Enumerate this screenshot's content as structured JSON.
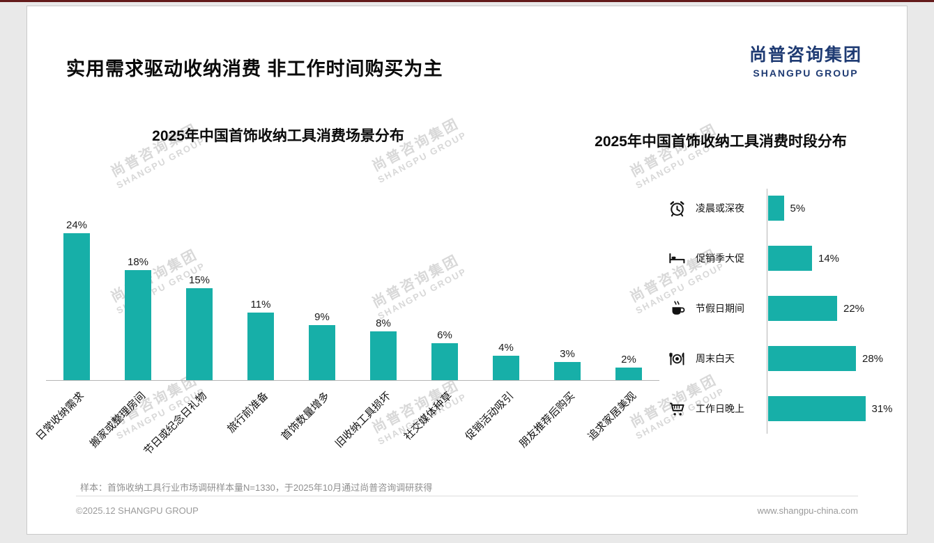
{
  "page": {
    "title": "实用需求驱动收纳消费 非工作时间购买为主",
    "logo": {
      "cn": "尚普咨询集团",
      "en": "SHANGPU GROUP"
    },
    "watermark": {
      "cn": "尚普咨询集团",
      "en": "SHANGPU GROUP"
    },
    "footer": {
      "sample_note": "样本：首饰收纳工具行业市场调研样本量N=1330，于2025年10月通过尚普咨询调研获得",
      "copyright": "©2025.12 SHANGPU GROUP",
      "website": "www.shangpu-china.com"
    },
    "colors": {
      "accent": "#17AFA8",
      "logo_navy": "#1F3B73"
    }
  },
  "chart_data": [
    {
      "type": "bar",
      "title": "2025年中国首饰收纳工具消费场景分布",
      "categories": [
        "日常收纳需求",
        "搬家或整理房间",
        "节日或纪念日礼物",
        "旅行前准备",
        "首饰数量增多",
        "旧收纳工具损坏",
        "社交媒体种草",
        "促销活动吸引",
        "朋友推荐后购买",
        "追求家居美观"
      ],
      "values": [
        24,
        18,
        15,
        11,
        9,
        8,
        6,
        4,
        3,
        2
      ],
      "unit": "%",
      "ylim": [
        0,
        26
      ],
      "bar_color": "#17AFA8",
      "grid": false,
      "value_labels": "above bars"
    },
    {
      "type": "bar-horizontal",
      "title": "2025年中国首饰收纳工具消费时段分布",
      "categories": [
        "凌晨或深夜",
        "促销季大促",
        "节假日期间",
        "周末白天",
        "工作日晚上"
      ],
      "values": [
        5,
        14,
        22,
        28,
        31
      ],
      "icons": [
        "alarm-clock",
        "bed",
        "coffee",
        "dining",
        "shopping-cart"
      ],
      "unit": "%",
      "xlim": [
        0,
        35
      ],
      "bar_color": "#17AFA8",
      "grid": false,
      "value_labels": "right of bars"
    }
  ]
}
